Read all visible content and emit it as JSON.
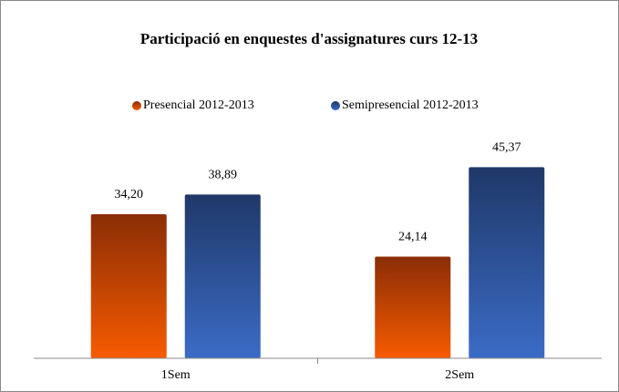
{
  "chart_data": {
    "type": "bar",
    "title": "Participació en enquestes d'assignatures curs 12-13",
    "categories": [
      "1Sem",
      "2Sem"
    ],
    "series": [
      {
        "name": "Presencial 2012-2013",
        "color": "#e8500a",
        "values": [
          34.2,
          24.14
        ],
        "value_labels": [
          "34,20",
          "24,14"
        ]
      },
      {
        "name": "Semipresencial 2012-2013",
        "color": "#2f5597",
        "values": [
          38.89,
          45.37
        ],
        "value_labels": [
          "38,89",
          "45,37"
        ]
      }
    ],
    "ylim": [
      0,
      50
    ],
    "legend": "top"
  }
}
